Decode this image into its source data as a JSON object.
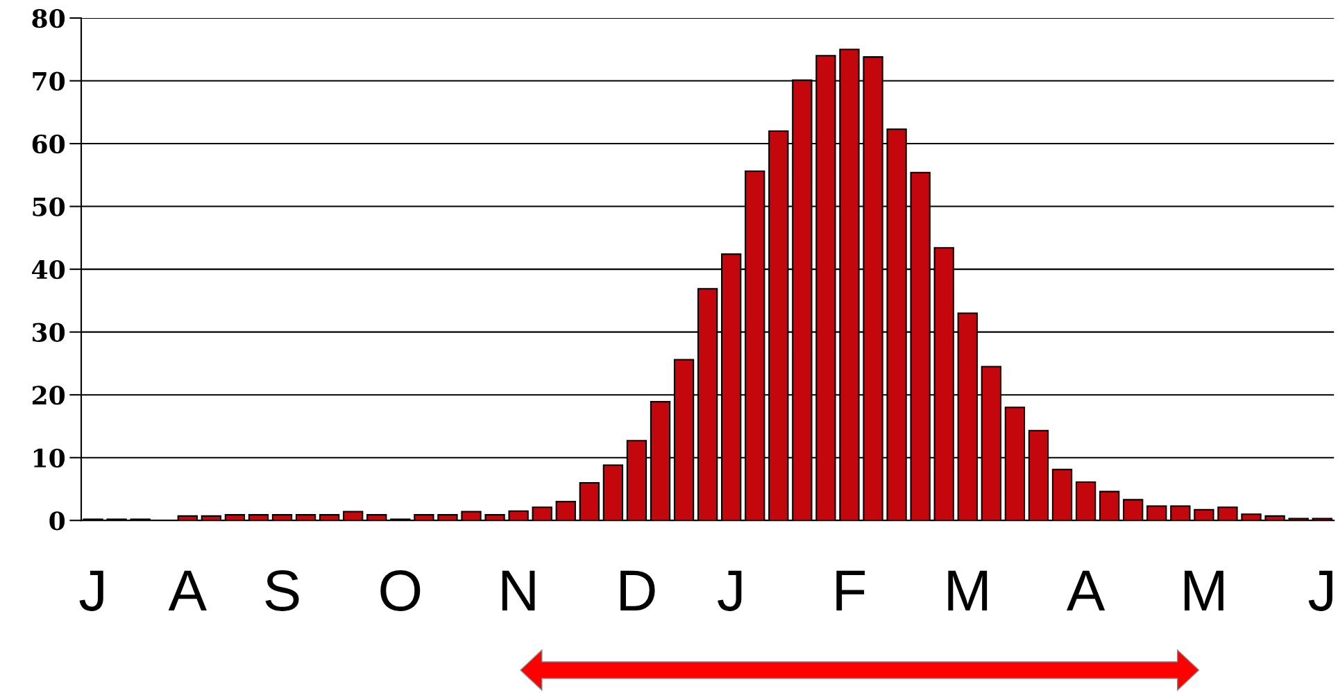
{
  "chart_data": {
    "type": "bar",
    "categories": [
      "J",
      null,
      null,
      null,
      "A",
      null,
      null,
      null,
      "S",
      null,
      null,
      null,
      null,
      "O",
      null,
      null,
      null,
      null,
      "N",
      null,
      null,
      null,
      null,
      "D",
      null,
      null,
      null,
      "J",
      null,
      null,
      null,
      null,
      "F",
      null,
      null,
      null,
      null,
      "M",
      null,
      null,
      null,
      null,
      "A",
      null,
      null,
      null,
      null,
      "M",
      null,
      null,
      null,
      null,
      "J"
    ],
    "values": [
      0.2,
      0.2,
      0.2,
      null,
      0.7,
      0.7,
      0.9,
      0.9,
      0.9,
      0.9,
      0.9,
      1.4,
      0.9,
      0.2,
      0.9,
      0.9,
      1.4,
      0.9,
      1.5,
      2.1,
      3.0,
      6.0,
      8.8,
      12.7,
      18.9,
      25.6,
      36.9,
      42.4,
      55.6,
      62.0,
      70.1,
      74.0,
      75.0,
      73.8,
      62.3,
      55.4,
      43.4,
      33.0,
      24.5,
      18.0,
      14.3,
      8.1,
      6.1,
      4.6,
      3.3,
      2.3,
      2.3,
      1.7,
      2.1,
      1.0,
      0.7,
      0.3,
      0.3
    ],
    "color": "#c4070d",
    "ylim": [
      0,
      80
    ],
    "yticks": [
      0,
      10,
      20,
      30,
      40,
      50,
      60,
      70,
      80
    ],
    "grid": "y"
  }
}
